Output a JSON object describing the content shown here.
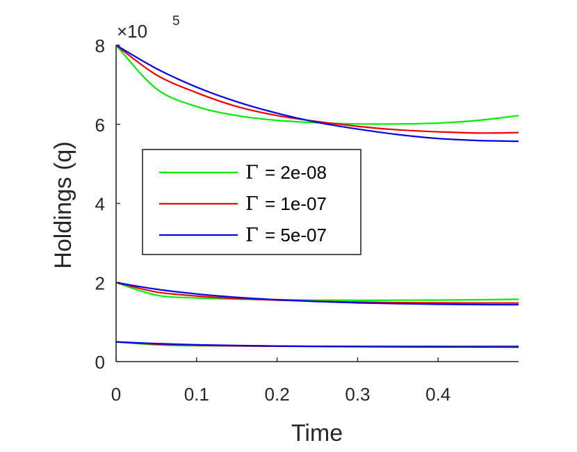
{
  "chart_data": {
    "type": "line",
    "title": "",
    "xlabel": "Time",
    "ylabel": "Holdings (q)",
    "xlim": [
      0,
      0.5
    ],
    "ylim": [
      0,
      800000
    ],
    "x_ticks": [
      0,
      0.1,
      0.2,
      0.3,
      0.4
    ],
    "x_tick_labels": [
      "0",
      "0.1",
      "0.2",
      "0.3",
      "0.4"
    ],
    "y_ticks": [
      0,
      2,
      4,
      6,
      8
    ],
    "y_tick_labels": [
      "0",
      "2",
      "4",
      "6",
      "8"
    ],
    "y_exponent": {
      "prefix": "×10",
      "power": "5"
    },
    "grid": false,
    "legend_position": "center-left",
    "legend_symbol": "Γ",
    "x": [
      0,
      0.05,
      0.1,
      0.15,
      0.2,
      0.25,
      0.3,
      0.35,
      0.4,
      0.45,
      0.5
    ],
    "series": [
      {
        "name": "Γ = 2e-08",
        "label_value": "= 2e-08",
        "color": "#00ee00",
        "group": "q0=8e5",
        "values": [
          800000,
          690000,
          645000,
          622000,
          610000,
          604000,
          601000,
          601000,
          603000,
          610000,
          622000
        ]
      },
      {
        "name": "Γ = 1e-07",
        "label_value": "= 1e-07",
        "color": "#ee0000",
        "group": "q0=8e5",
        "values": [
          800000,
          725000,
          680000,
          645000,
          622000,
          607000,
          595000,
          586000,
          581000,
          578000,
          579000
        ]
      },
      {
        "name": "Γ = 5e-07",
        "label_value": "= 5e-07",
        "color": "#0000ee",
        "group": "q0=8e5",
        "values": [
          800000,
          741000,
          694000,
          657000,
          628000,
          605000,
          588000,
          574000,
          564000,
          559000,
          557000
        ]
      },
      {
        "name": "Γ = 2e-08",
        "color": "#00ee00",
        "group": "q0=2e5",
        "legend": false,
        "values": [
          200000,
          168000,
          161000,
          158000,
          156500,
          155500,
          155000,
          155200,
          155600,
          156300,
          157500
        ]
      },
      {
        "name": "Γ = 1e-07",
        "color": "#ee0000",
        "group": "q0=2e5",
        "legend": false,
        "values": [
          200000,
          176000,
          166000,
          159500,
          155500,
          152500,
          150500,
          149300,
          148600,
          148300,
          148200
        ]
      },
      {
        "name": "Γ = 5e-07",
        "color": "#0000ee",
        "group": "q0=2e5",
        "legend": false,
        "values": [
          200000,
          183000,
          171000,
          162500,
          156500,
          152000,
          148600,
          146400,
          145000,
          144200,
          143800
        ]
      },
      {
        "name": "Γ = 2e-08",
        "color": "#00ee00",
        "group": "q0=5e4",
        "legend": false,
        "values": [
          50000,
          42500,
          40200,
          39500,
          39100,
          38900,
          38800,
          38800,
          38900,
          39100,
          39400
        ]
      },
      {
        "name": "Γ = 1e-07",
        "color": "#ee0000",
        "group": "q0=5e4",
        "legend": false,
        "values": [
          50000,
          44000,
          41300,
          39800,
          38900,
          38300,
          37900,
          37700,
          37600,
          37600,
          37600
        ]
      },
      {
        "name": "Γ = 5e-07",
        "color": "#0000ee",
        "group": "q0=5e4",
        "legend": false,
        "values": [
          50000,
          45500,
          42500,
          40600,
          39300,
          38400,
          37800,
          37400,
          37100,
          36900,
          36800
        ]
      }
    ]
  }
}
